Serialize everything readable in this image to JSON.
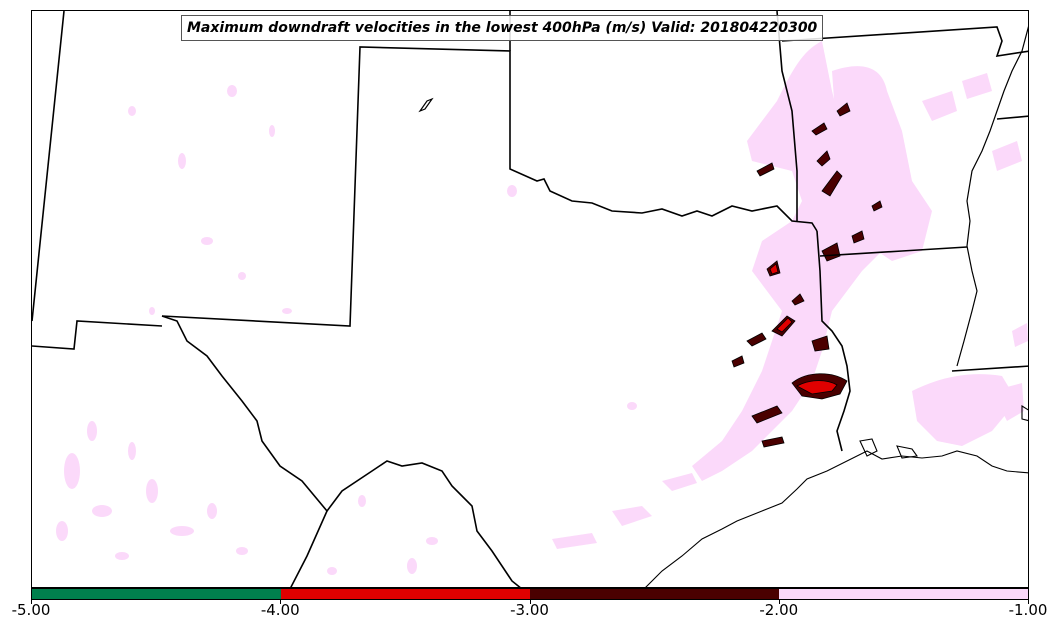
{
  "title": "Maximum downdraft velocities in the lowest 400hPa (m/s) Valid: 201804220300",
  "colorbar": {
    "ticks": [
      "-5.00",
      "-4.00",
      "-3.00",
      "-2.00",
      "-1.00"
    ],
    "segments": [
      {
        "range": [
          -5.0,
          -4.0
        ],
        "color": "#00804d"
      },
      {
        "range": [
          -4.0,
          -3.0
        ],
        "color": "#e00000"
      },
      {
        "range": [
          -3.0,
          -2.0
        ],
        "color": "#4a0000"
      },
      {
        "range": [
          -2.0,
          -1.0
        ],
        "color": "#fbd9fa"
      }
    ]
  },
  "layers": {
    "boundaries": [
      "state-boundaries",
      "coastline",
      "texas-mexico-border",
      "red-river",
      "mississippi-river"
    ],
    "field": "downdraft-velocity-shading"
  }
}
